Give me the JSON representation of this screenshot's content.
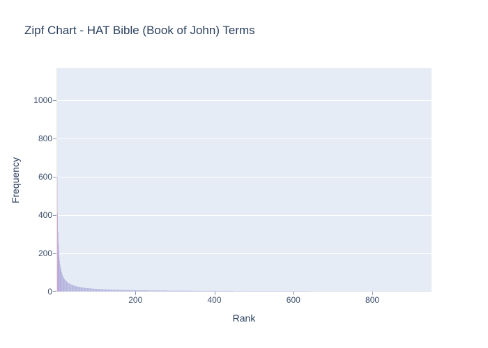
{
  "title": "Zipf Chart - HAT Bible (Book of John) Terms",
  "chart_data": {
    "type": "bar",
    "title": "Zipf Chart - HAT Bible (Book of John) Terms",
    "xlabel": "Rank",
    "ylabel": "Frequency",
    "x_ticks": [
      200,
      400,
      600,
      800
    ],
    "y_ticks": [
      0,
      200,
      400,
      600,
      800,
      1000
    ],
    "xlim": [
      0,
      950
    ],
    "ylim": [
      0,
      1168
    ],
    "grid": "horizontal-only",
    "legend_position": "none",
    "n_terms": 950,
    "zipf": {
      "max_frequency": 1160,
      "exponent": 0.95,
      "min_frequency": 1
    },
    "frequencies_sample": [
      [
        1,
        1160
      ],
      [
        2,
        601
      ],
      [
        3,
        408
      ],
      [
        4,
        311
      ],
      [
        5,
        252
      ],
      [
        10,
        133
      ],
      [
        20,
        67
      ],
      [
        50,
        29
      ],
      [
        100,
        15
      ],
      [
        200,
        8
      ],
      [
        400,
        4
      ],
      [
        700,
        2
      ],
      [
        950,
        2
      ]
    ],
    "bar_color_mapping": "frequency",
    "colors": {
      "paper_bg": "#ffffff",
      "plot_bg": "#e5ecf6",
      "grid": "#ffffff",
      "title_text": "#2a3f5f",
      "tick_text": "#3c4f6d",
      "tick_mark": "#8596b1",
      "colorscale": [
        [
          0.0,
          "#b3b4dc"
        ],
        [
          0.12,
          "#a9a3d8"
        ],
        [
          0.28,
          "#b292d2"
        ],
        [
          0.45,
          "#cd9bca"
        ],
        [
          0.56,
          "#dcaec6"
        ],
        [
          0.75,
          "#e7c9bc"
        ],
        [
          1.0,
          "#edeac6"
        ]
      ]
    }
  }
}
